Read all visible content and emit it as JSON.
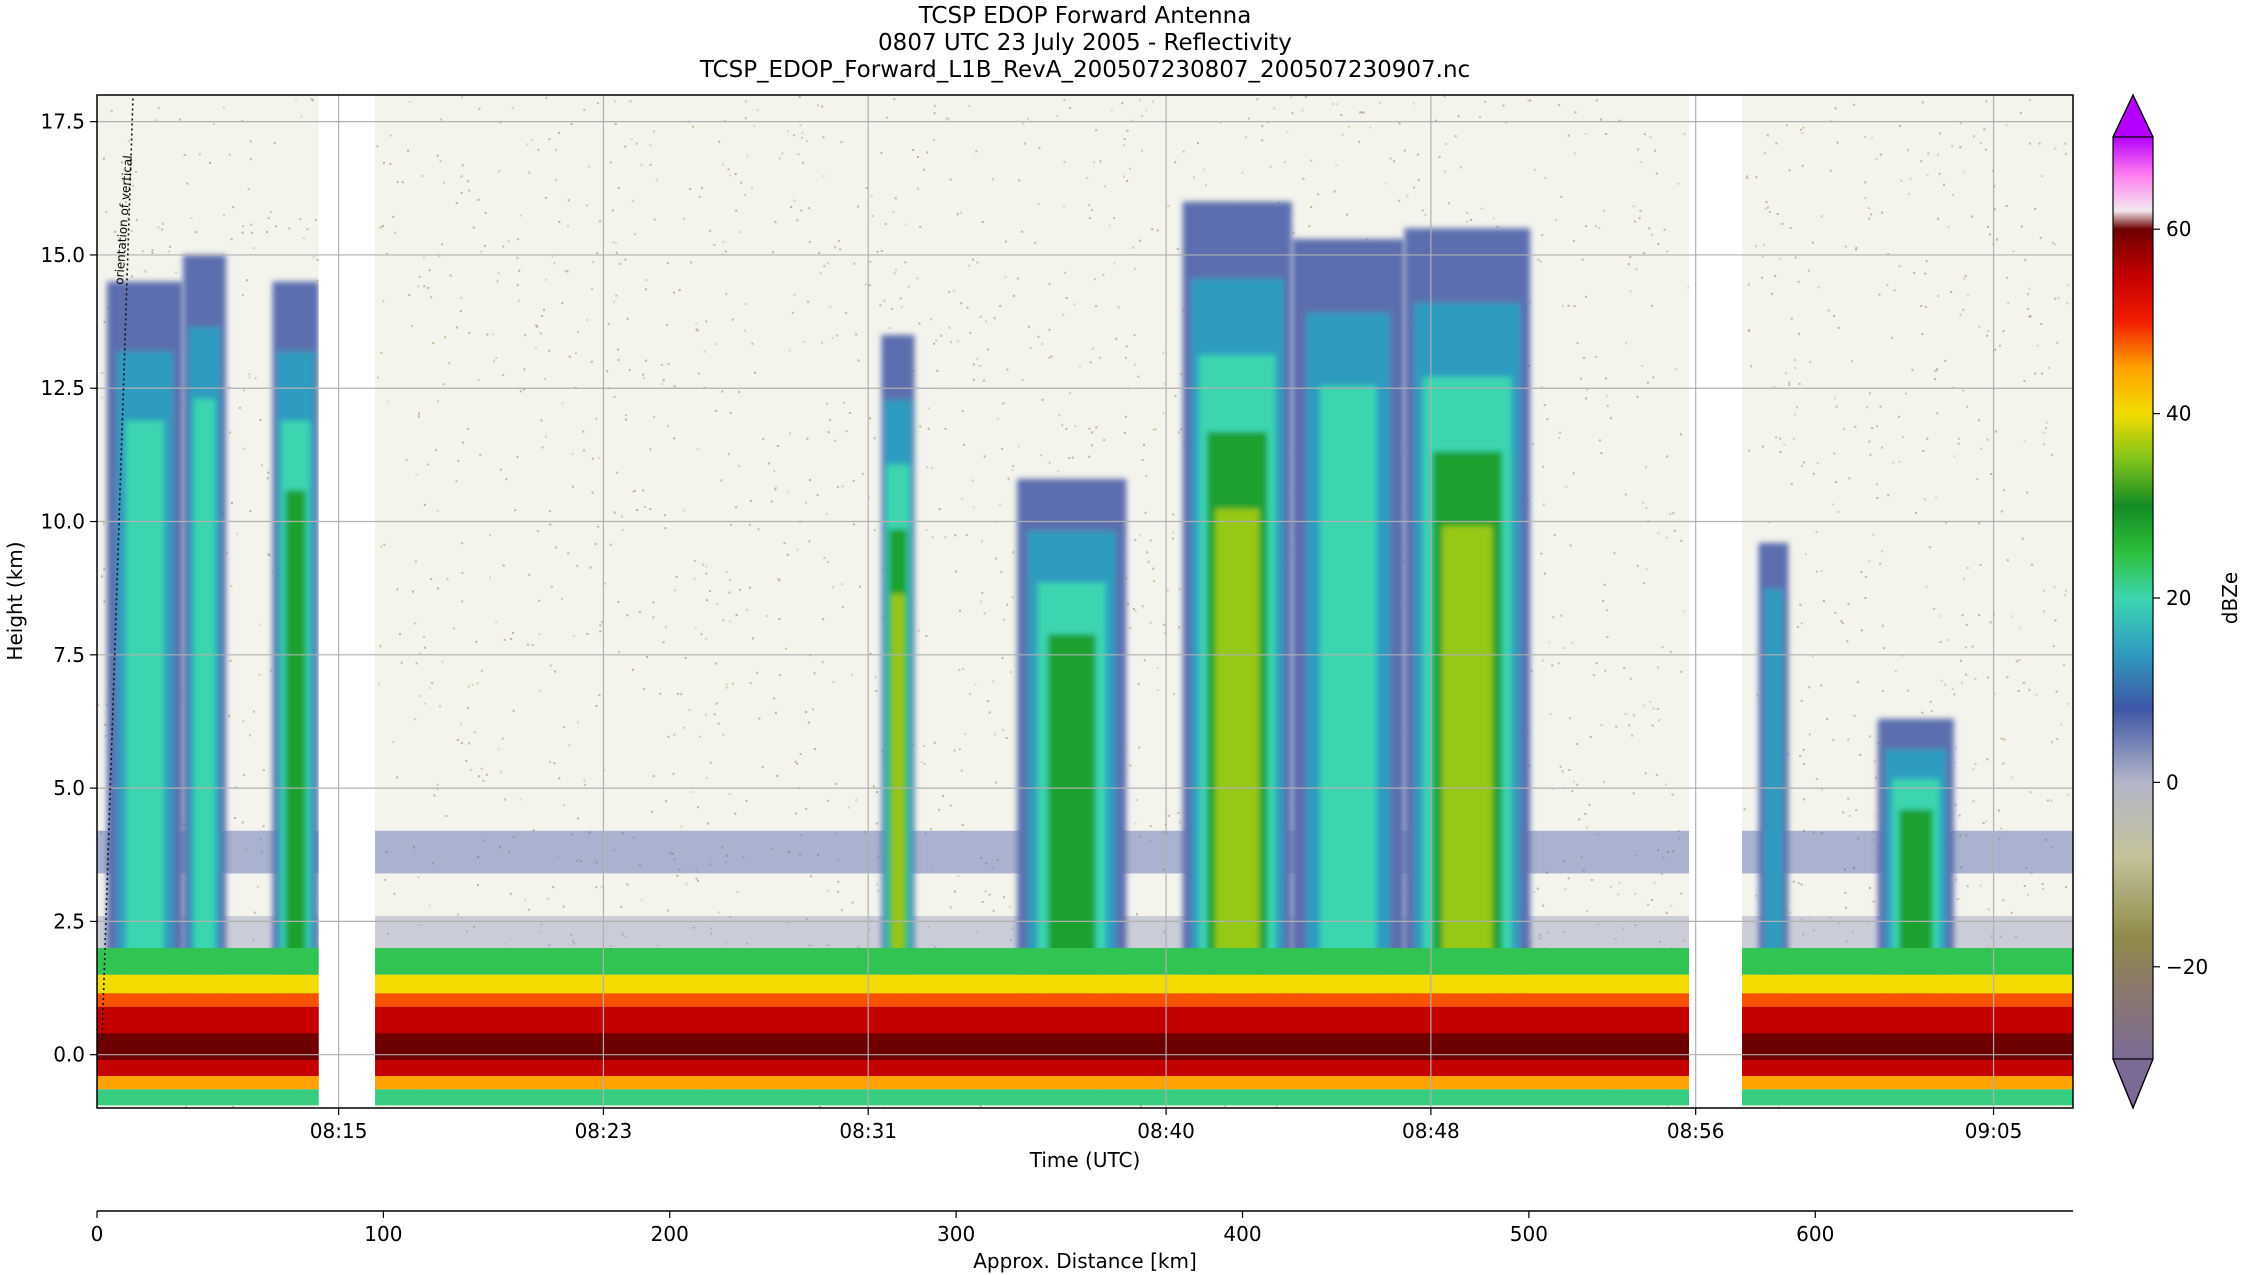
{
  "chart_data": {
    "type": "heatmap",
    "title": "TCSP EDOP Forward Antenna",
    "subtitle": "0807 UTC 23 July 2005 - Reflectivity",
    "filename": "TCSP_EDOP_Forward_L1B_RevA_200507230807_200507230907.nc",
    "xlabel": "Time (UTC)",
    "ylabel": "Height (km)",
    "x2label": "Approx. Distance [km]",
    "colorbar_label": "dBZe",
    "annotation": "orientation of vertical",
    "xlim_minutes": [
      487.7,
      547.4
    ],
    "ylim": [
      -1.0,
      18.0
    ],
    "x_ticks": [
      {
        "t": 495,
        "label": "08:15"
      },
      {
        "t": 503,
        "label": "08:23"
      },
      {
        "t": 511,
        "label": "08:31"
      },
      {
        "t": 520,
        "label": "08:40"
      },
      {
        "t": 528,
        "label": "08:48"
      },
      {
        "t": 536,
        "label": "08:56"
      },
      {
        "t": 545,
        "label": "09:05"
      }
    ],
    "y_ticks": [
      {
        "v": 0.0,
        "label": "0.0"
      },
      {
        "v": 2.5,
        "label": "2.5"
      },
      {
        "v": 5.0,
        "label": "5.0"
      },
      {
        "v": 7.5,
        "label": "7.5"
      },
      {
        "v": 10.0,
        "label": "10.0"
      },
      {
        "v": 12.5,
        "label": "12.5"
      },
      {
        "v": 15.0,
        "label": "15.0"
      },
      {
        "v": 17.5,
        "label": "17.5"
      }
    ],
    "x2_range_km": [
      0,
      690
    ],
    "x2_ticks": [
      {
        "v": 0,
        "label": "0"
      },
      {
        "v": 100,
        "label": "100"
      },
      {
        "v": 200,
        "label": "200"
      },
      {
        "v": 300,
        "label": "300"
      },
      {
        "v": 400,
        "label": "400"
      },
      {
        "v": 500,
        "label": "500"
      },
      {
        "v": 600,
        "label": "600"
      }
    ],
    "colorbar_range": [
      -30,
      70
    ],
    "colorbar_ticks": [
      {
        "v": 60,
        "label": "60"
      },
      {
        "v": 40,
        "label": "40"
      },
      {
        "v": 20,
        "label": "20"
      },
      {
        "v": 0,
        "label": "0"
      },
      {
        "v": -20,
        "label": "−20"
      }
    ],
    "colorbar_stops": [
      {
        "v": -30,
        "color": "#7c6a96"
      },
      {
        "v": -22,
        "color": "#8b7a6a"
      },
      {
        "v": -17,
        "color": "#8f8a4a"
      },
      {
        "v": -8,
        "color": "#c4c39a"
      },
      {
        "v": 0,
        "color": "#b3b5c8"
      },
      {
        "v": 8,
        "color": "#3e56a6"
      },
      {
        "v": 14,
        "color": "#2f9bc0"
      },
      {
        "v": 20,
        "color": "#3bd6b0"
      },
      {
        "v": 25,
        "color": "#2ebf3a"
      },
      {
        "v": 30,
        "color": "#138c25"
      },
      {
        "v": 35,
        "color": "#7fc31a"
      },
      {
        "v": 40,
        "color": "#f2dc00"
      },
      {
        "v": 45,
        "color": "#ffa200"
      },
      {
        "v": 50,
        "color": "#f21c00"
      },
      {
        "v": 55,
        "color": "#c40000"
      },
      {
        "v": 60,
        "color": "#6e0000"
      },
      {
        "v": 62,
        "color": "#f2e9ee"
      },
      {
        "v": 66,
        "color": "#ff7af0"
      },
      {
        "v": 70,
        "color": "#b600ff"
      }
    ],
    "data_gaps_minutes": [
      [
        494.4,
        496.1
      ],
      [
        535.8,
        537.4
      ]
    ],
    "surface_band_dbze": 55,
    "noise_dbze": -15,
    "convective_cells": [
      {
        "t0": 488.0,
        "t1": 490.3,
        "top_km": 14.5,
        "peak_dbze": 25
      },
      {
        "t0": 490.3,
        "t1": 491.6,
        "top_km": 15.0,
        "peak_dbze": 22
      },
      {
        "t0": 493.0,
        "t1": 494.4,
        "top_km": 14.5,
        "peak_dbze": 28
      },
      {
        "t0": 511.4,
        "t1": 512.4,
        "top_km": 13.5,
        "peak_dbze": 40
      },
      {
        "t0": 515.5,
        "t1": 518.8,
        "top_km": 10.8,
        "peak_dbze": 35
      },
      {
        "t0": 520.5,
        "t1": 523.8,
        "top_km": 16.0,
        "peak_dbze": 40
      },
      {
        "t0": 523.8,
        "t1": 527.2,
        "top_km": 15.3,
        "peak_dbze": 25
      },
      {
        "t0": 527.2,
        "t1": 531.0,
        "top_km": 15.5,
        "peak_dbze": 40
      },
      {
        "t0": 537.9,
        "t1": 538.8,
        "top_km": 9.6,
        "peak_dbze": 16
      },
      {
        "t0": 541.5,
        "t1": 543.8,
        "top_km": 6.3,
        "peak_dbze": 30
      }
    ],
    "melting_layer_km": 4.0
  }
}
